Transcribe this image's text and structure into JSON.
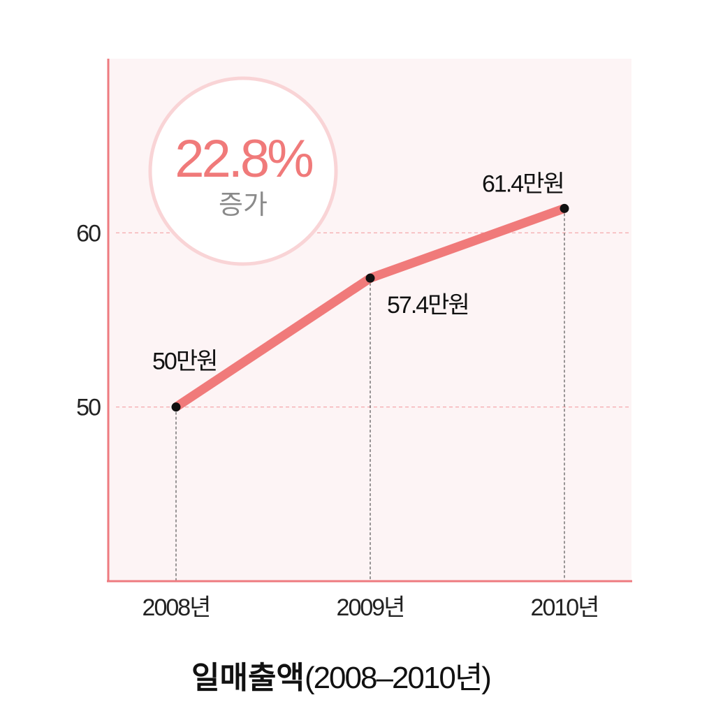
{
  "chart_data": {
    "type": "line",
    "title": {
      "main": "일매출액",
      "sub": "(2008–2010년)"
    },
    "categories": [
      "2008년",
      "2009년",
      "2010년"
    ],
    "values": [
      50,
      57.4,
      61.4
    ],
    "data_labels": [
      "50만원",
      "57.4만원",
      "61.4만원"
    ],
    "y_ticks": [
      "50",
      "60"
    ],
    "ylim": [
      40,
      70
    ],
    "grid": "dashed horizontal at ticks",
    "xlabel": "",
    "ylabel": ""
  },
  "badge": {
    "value": "22.8%",
    "label": "증가"
  },
  "colors": {
    "line": "#f07a7a",
    "plot_bg": "#fdf4f5",
    "axis": "#ee7b80",
    "grid": "#f4a0a4",
    "badge_ring": "#f9d4d6",
    "badge_text": "#f07a7a"
  }
}
